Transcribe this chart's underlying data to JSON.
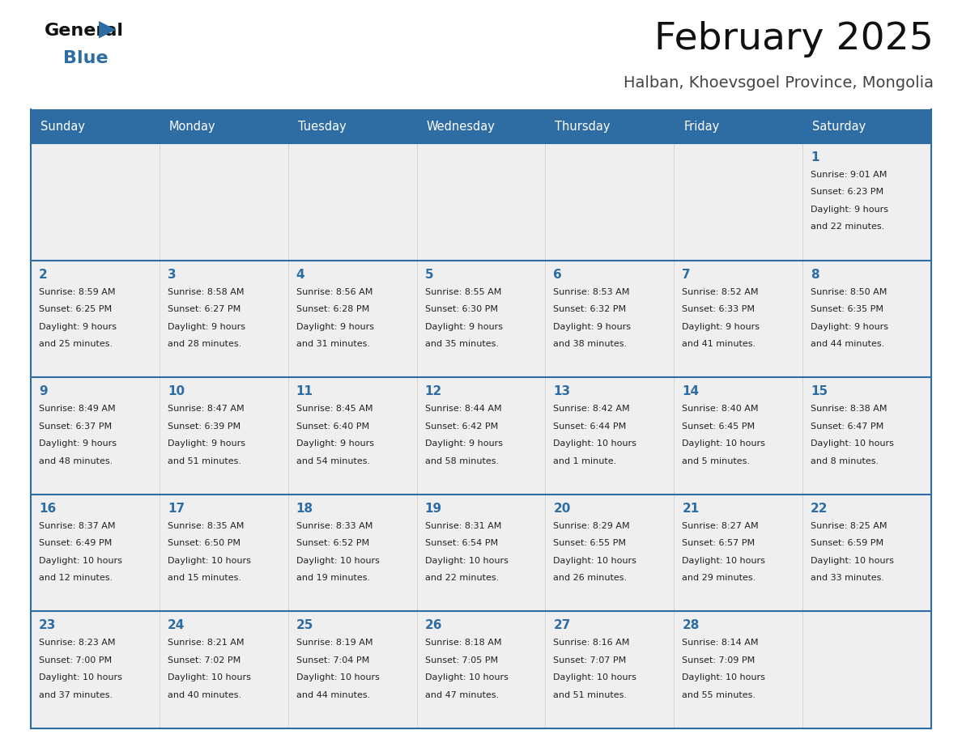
{
  "title": "February 2025",
  "subtitle": "Halban, Khoevsgoel Province, Mongolia",
  "days_of_week": [
    "Sunday",
    "Monday",
    "Tuesday",
    "Wednesday",
    "Thursday",
    "Friday",
    "Saturday"
  ],
  "header_bg": "#2E6DA4",
  "header_text": "#FFFFFF",
  "cell_bg_odd": "#EFEFEF",
  "cell_bg_even": "#F7F7F7",
  "cell_border_color": "#2E6DA4",
  "day_num_color": "#2E6DA4",
  "info_color": "#222222",
  "title_color": "#111111",
  "subtitle_color": "#444444",
  "logo_general_color": "#111111",
  "logo_blue_color": "#2E6DA4",
  "weeks": [
    [
      {
        "day": null,
        "info": ""
      },
      {
        "day": null,
        "info": ""
      },
      {
        "day": null,
        "info": ""
      },
      {
        "day": null,
        "info": ""
      },
      {
        "day": null,
        "info": ""
      },
      {
        "day": null,
        "info": ""
      },
      {
        "day": 1,
        "info": "Sunrise: 9:01 AM\nSunset: 6:23 PM\nDaylight: 9 hours\nand 22 minutes."
      }
    ],
    [
      {
        "day": 2,
        "info": "Sunrise: 8:59 AM\nSunset: 6:25 PM\nDaylight: 9 hours\nand 25 minutes."
      },
      {
        "day": 3,
        "info": "Sunrise: 8:58 AM\nSunset: 6:27 PM\nDaylight: 9 hours\nand 28 minutes."
      },
      {
        "day": 4,
        "info": "Sunrise: 8:56 AM\nSunset: 6:28 PM\nDaylight: 9 hours\nand 31 minutes."
      },
      {
        "day": 5,
        "info": "Sunrise: 8:55 AM\nSunset: 6:30 PM\nDaylight: 9 hours\nand 35 minutes."
      },
      {
        "day": 6,
        "info": "Sunrise: 8:53 AM\nSunset: 6:32 PM\nDaylight: 9 hours\nand 38 minutes."
      },
      {
        "day": 7,
        "info": "Sunrise: 8:52 AM\nSunset: 6:33 PM\nDaylight: 9 hours\nand 41 minutes."
      },
      {
        "day": 8,
        "info": "Sunrise: 8:50 AM\nSunset: 6:35 PM\nDaylight: 9 hours\nand 44 minutes."
      }
    ],
    [
      {
        "day": 9,
        "info": "Sunrise: 8:49 AM\nSunset: 6:37 PM\nDaylight: 9 hours\nand 48 minutes."
      },
      {
        "day": 10,
        "info": "Sunrise: 8:47 AM\nSunset: 6:39 PM\nDaylight: 9 hours\nand 51 minutes."
      },
      {
        "day": 11,
        "info": "Sunrise: 8:45 AM\nSunset: 6:40 PM\nDaylight: 9 hours\nand 54 minutes."
      },
      {
        "day": 12,
        "info": "Sunrise: 8:44 AM\nSunset: 6:42 PM\nDaylight: 9 hours\nand 58 minutes."
      },
      {
        "day": 13,
        "info": "Sunrise: 8:42 AM\nSunset: 6:44 PM\nDaylight: 10 hours\nand 1 minute."
      },
      {
        "day": 14,
        "info": "Sunrise: 8:40 AM\nSunset: 6:45 PM\nDaylight: 10 hours\nand 5 minutes."
      },
      {
        "day": 15,
        "info": "Sunrise: 8:38 AM\nSunset: 6:47 PM\nDaylight: 10 hours\nand 8 minutes."
      }
    ],
    [
      {
        "day": 16,
        "info": "Sunrise: 8:37 AM\nSunset: 6:49 PM\nDaylight: 10 hours\nand 12 minutes."
      },
      {
        "day": 17,
        "info": "Sunrise: 8:35 AM\nSunset: 6:50 PM\nDaylight: 10 hours\nand 15 minutes."
      },
      {
        "day": 18,
        "info": "Sunrise: 8:33 AM\nSunset: 6:52 PM\nDaylight: 10 hours\nand 19 minutes."
      },
      {
        "day": 19,
        "info": "Sunrise: 8:31 AM\nSunset: 6:54 PM\nDaylight: 10 hours\nand 22 minutes."
      },
      {
        "day": 20,
        "info": "Sunrise: 8:29 AM\nSunset: 6:55 PM\nDaylight: 10 hours\nand 26 minutes."
      },
      {
        "day": 21,
        "info": "Sunrise: 8:27 AM\nSunset: 6:57 PM\nDaylight: 10 hours\nand 29 minutes."
      },
      {
        "day": 22,
        "info": "Sunrise: 8:25 AM\nSunset: 6:59 PM\nDaylight: 10 hours\nand 33 minutes."
      }
    ],
    [
      {
        "day": 23,
        "info": "Sunrise: 8:23 AM\nSunset: 7:00 PM\nDaylight: 10 hours\nand 37 minutes."
      },
      {
        "day": 24,
        "info": "Sunrise: 8:21 AM\nSunset: 7:02 PM\nDaylight: 10 hours\nand 40 minutes."
      },
      {
        "day": 25,
        "info": "Sunrise: 8:19 AM\nSunset: 7:04 PM\nDaylight: 10 hours\nand 44 minutes."
      },
      {
        "day": 26,
        "info": "Sunrise: 8:18 AM\nSunset: 7:05 PM\nDaylight: 10 hours\nand 47 minutes."
      },
      {
        "day": 27,
        "info": "Sunrise: 8:16 AM\nSunset: 7:07 PM\nDaylight: 10 hours\nand 51 minutes."
      },
      {
        "day": 28,
        "info": "Sunrise: 8:14 AM\nSunset: 7:09 PM\nDaylight: 10 hours\nand 55 minutes."
      },
      {
        "day": null,
        "info": ""
      }
    ]
  ],
  "figsize": [
    11.88,
    9.18
  ],
  "dpi": 100
}
